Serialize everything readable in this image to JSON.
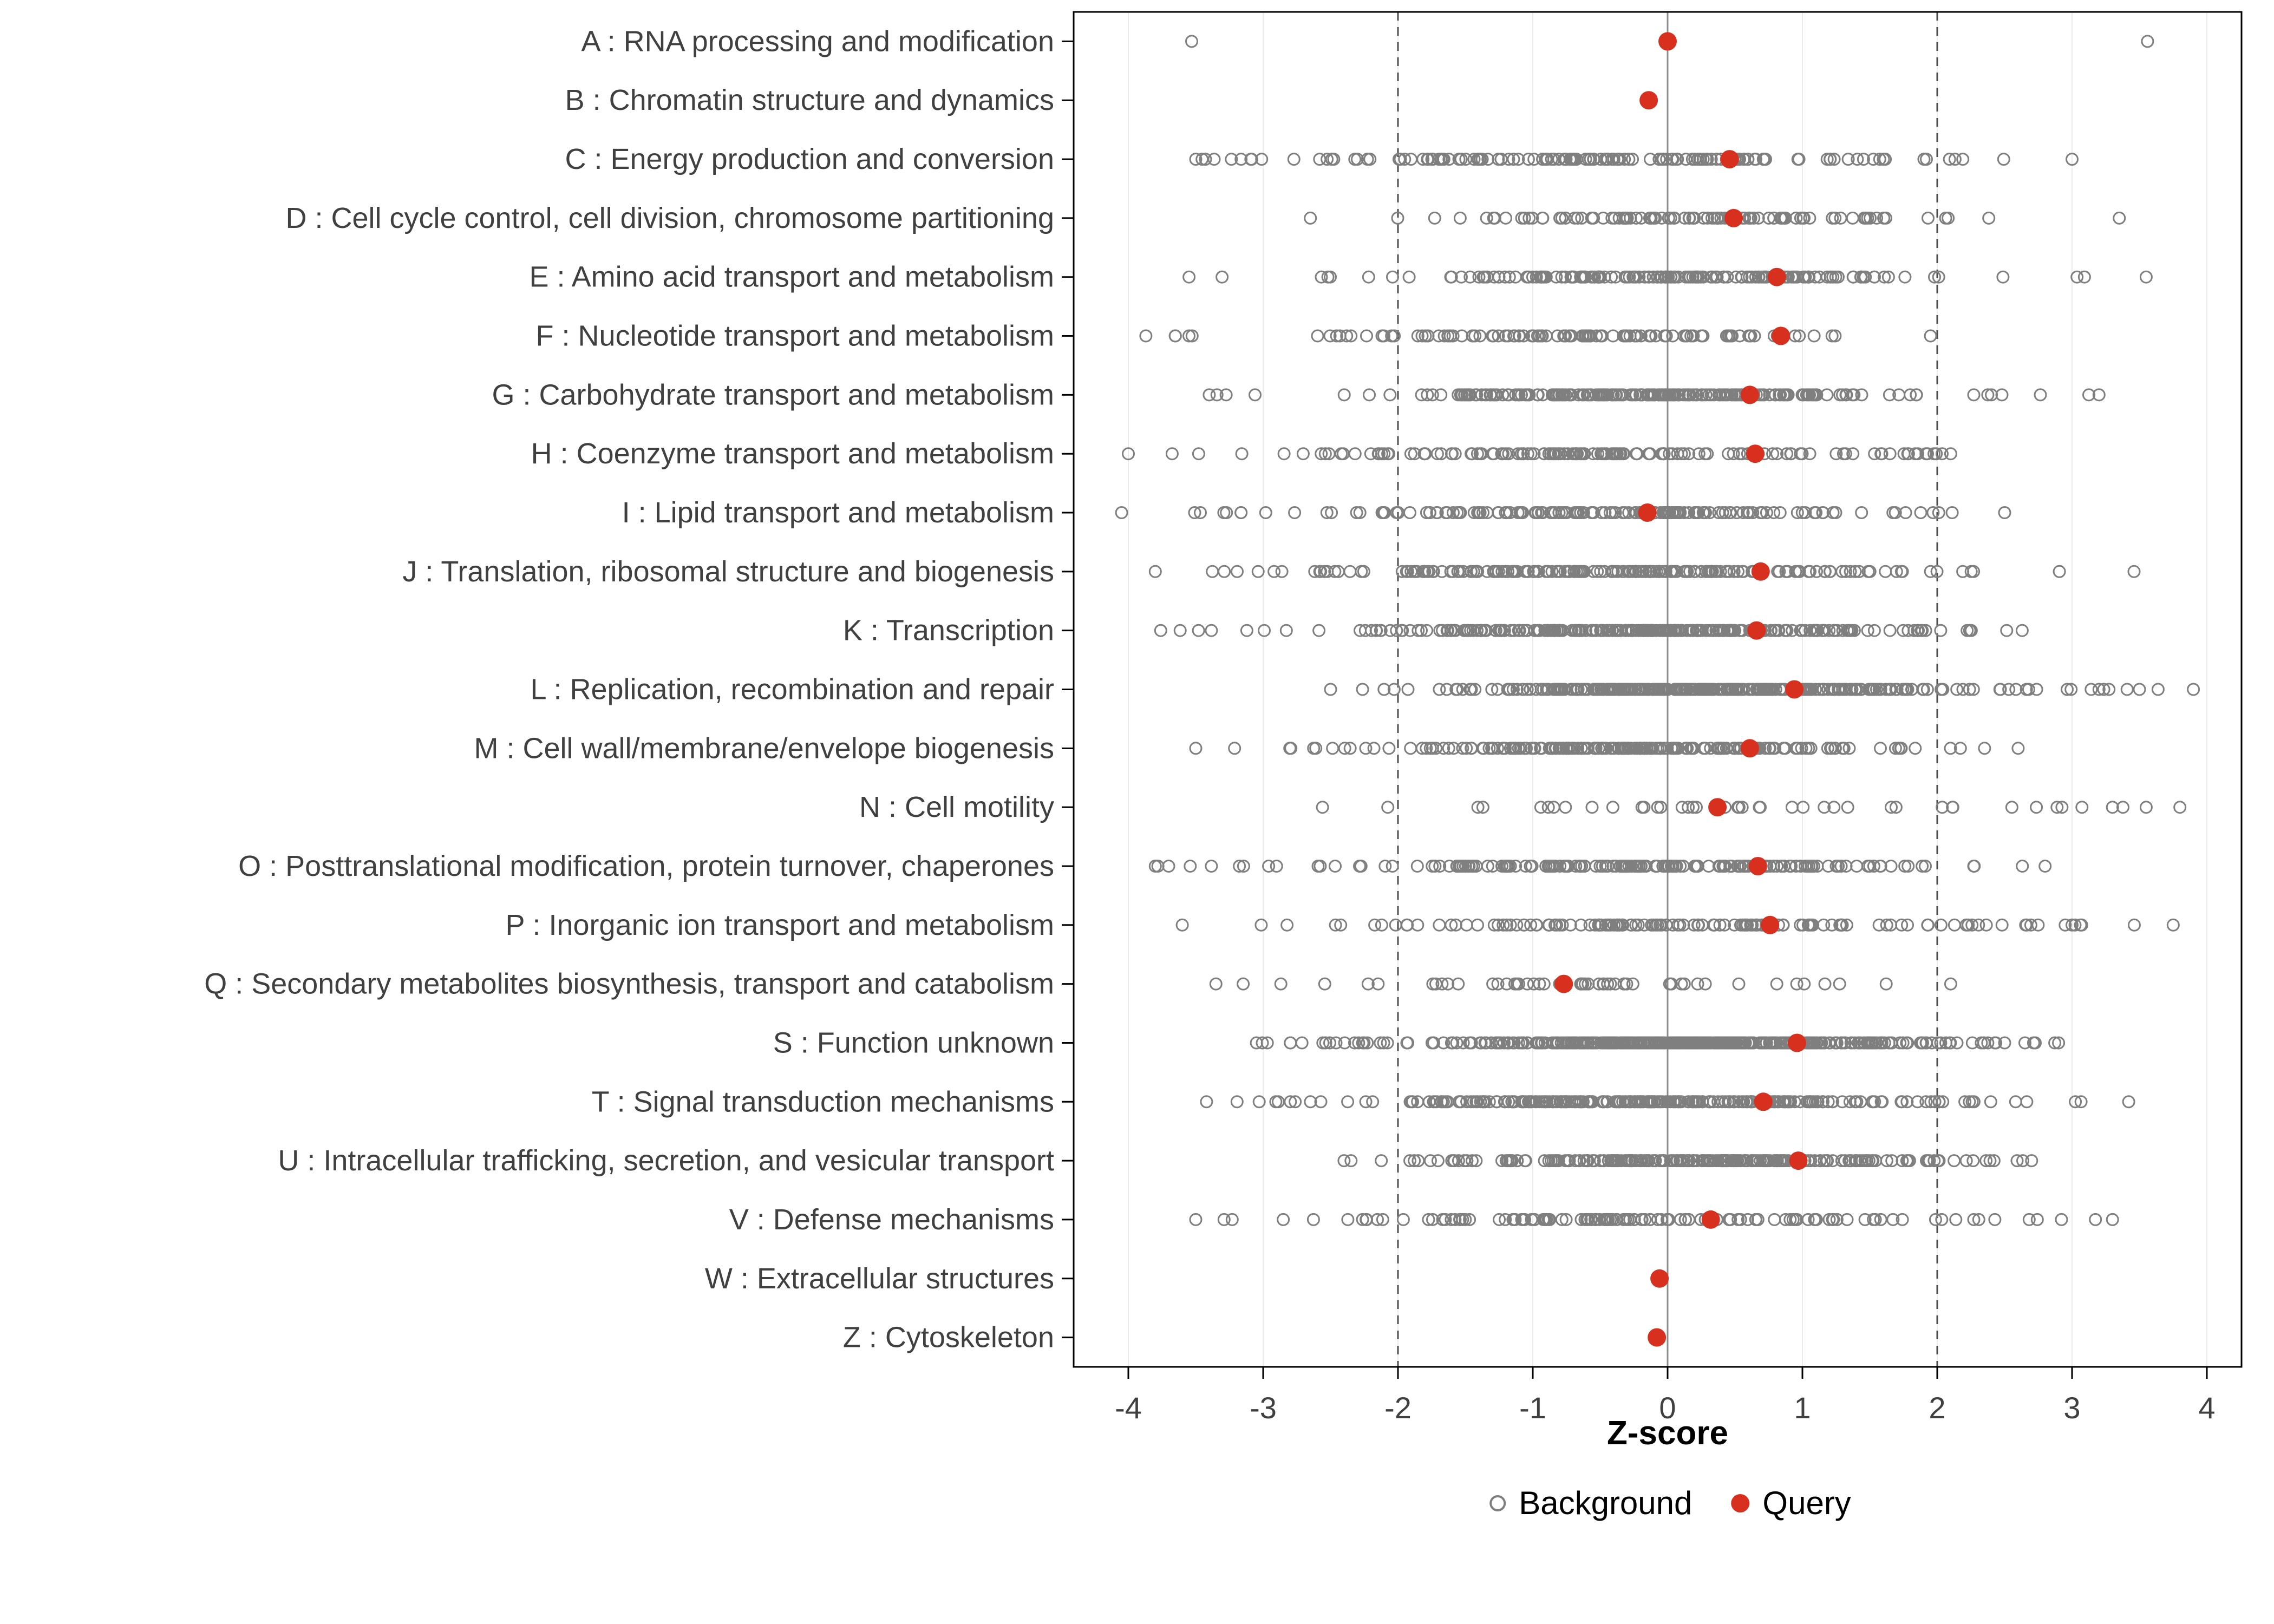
{
  "chart_data": {
    "type": "scatter",
    "title": "",
    "xlabel": "Z-score",
    "xlim": [
      -4.45,
      4.3
    ],
    "xticks": [
      -4,
      -3,
      -2,
      -1,
      0,
      1,
      2,
      3,
      4
    ],
    "reference_lines": {
      "zero": 0,
      "dashed": [
        -2,
        2
      ]
    },
    "legend": [
      {
        "label": "Background",
        "style": "open-circle"
      },
      {
        "label": "Query",
        "style": "filled-circle"
      }
    ],
    "colors": {
      "query": "#d7301f",
      "background": "#7f7f7f",
      "dashed_line": "#4d4d4d",
      "zero_line": "#8c8c8c",
      "grid": "#ebebeb",
      "axis_text": "#404040",
      "panel_border": "#000000"
    },
    "categories": [
      {
        "label": "A : RNA processing and modification",
        "query": 0.0,
        "bg": {
          "n": 0,
          "extra": [
            -3.53,
            3.56
          ]
        }
      },
      {
        "label": "B : Chromatin structure and dynamics",
        "query": -0.14,
        "bg": {
          "n": 0
        }
      },
      {
        "label": "C : Energy production and conversion",
        "query": 0.46,
        "bg": {
          "n": 150,
          "mean": -0.3,
          "sd": 1.0,
          "min": -3.5,
          "max": 3.0
        }
      },
      {
        "label": "D : Cell cycle control, cell division, chromosome partitioning",
        "query": 0.49,
        "bg": {
          "n": 100,
          "mean": 0.2,
          "sd": 1.0,
          "min": -2.65,
          "max": 3.35
        }
      },
      {
        "label": "E : Amino acid transport and metabolism",
        "query": 0.81,
        "bg": {
          "n": 160,
          "mean": -0.2,
          "sd": 1.1,
          "min": -3.55,
          "max": 3.55
        }
      },
      {
        "label": "F : Nucleotide transport and metabolism",
        "query": 0.84,
        "bg": {
          "n": 110,
          "mean": -0.6,
          "sd": 1.1,
          "min": -3.87,
          "max": 1.95
        }
      },
      {
        "label": "G : Carbohydrate transport and metabolism",
        "query": 0.61,
        "bg": {
          "n": 230,
          "mean": -0.2,
          "sd": 1.0,
          "min": -3.4,
          "max": 3.2
        }
      },
      {
        "label": "H : Coenzyme transport and metabolism",
        "query": 0.65,
        "bg": {
          "n": 140,
          "mean": -0.5,
          "sd": 1.1,
          "min": -4.0,
          "max": 2.1
        }
      },
      {
        "label": "I : Lipid transport and metabolism",
        "query": -0.15,
        "bg": {
          "n": 160,
          "mean": -0.4,
          "sd": 1.1,
          "min": -4.05,
          "max": 2.5
        }
      },
      {
        "label": "J : Translation, ribosomal structure and biogenesis",
        "query": 0.69,
        "bg": {
          "n": 190,
          "mean": -0.4,
          "sd": 1.2,
          "min": -3.8,
          "max": 3.46
        }
      },
      {
        "label": "K : Transcription",
        "query": 0.66,
        "bg": {
          "n": 280,
          "mean": -0.2,
          "sd": 1.0,
          "min": -3.76,
          "max": 2.63
        }
      },
      {
        "label": "L : Replication, recombination and repair",
        "query": 0.94,
        "bg": {
          "n": 320,
          "mean": 0.35,
          "sd": 0.85,
          "min": -2.5,
          "max": 3.9,
          "extra": [
            3.2,
            3.5
          ]
        }
      },
      {
        "label": "M : Cell wall/membrane/envelope biogenesis",
        "query": 0.61,
        "bg": {
          "n": 210,
          "mean": -0.3,
          "sd": 1.0,
          "min": -3.5,
          "max": 2.6
        }
      },
      {
        "label": "N : Cell motility",
        "query": 0.37,
        "bg": {
          "n": 40,
          "mean": 0.2,
          "sd": 1.2,
          "min": -2.56,
          "max": 3.8,
          "extra": [
            3.3,
            3.55
          ]
        }
      },
      {
        "label": "O : Posttranslational modification, protein turnover, chaperones",
        "query": 0.67,
        "bg": {
          "n": 180,
          "mean": -0.4,
          "sd": 1.1,
          "min": -3.8,
          "max": 2.8
        }
      },
      {
        "label": "P : Inorganic ion transport and metabolism",
        "query": 0.76,
        "bg": {
          "n": 140,
          "mean": 0.1,
          "sd": 1.2,
          "min": -3.6,
          "max": 3.75
        }
      },
      {
        "label": "Q : Secondary metabolites biosynthesis, transport and catabolism",
        "query": -0.77,
        "bg": {
          "n": 50,
          "mean": -0.6,
          "sd": 1.1,
          "min": -3.35,
          "max": 2.1
        }
      },
      {
        "label": "S : Function unknown",
        "query": 0.96,
        "bg": {
          "n": 420,
          "mean": 0.2,
          "sd": 0.95,
          "min": -3.05,
          "max": 2.9
        }
      },
      {
        "label": "T : Signal transduction mechanisms",
        "query": 0.71,
        "bg": {
          "n": 280,
          "mean": -0.1,
          "sd": 1.1,
          "min": -3.42,
          "max": 3.42
        }
      },
      {
        "label": "U : Intracellular trafficking, secretion, and vesicular transport",
        "query": 0.97,
        "bg": {
          "n": 230,
          "mean": 0.3,
          "sd": 0.85,
          "min": -2.4,
          "max": 2.7
        }
      },
      {
        "label": "V : Defense mechanisms",
        "query": 0.32,
        "bg": {
          "n": 130,
          "mean": -0.2,
          "sd": 1.2,
          "min": -3.5,
          "max": 3.3
        }
      },
      {
        "label": "W : Extracellular structures",
        "query": -0.06,
        "bg": {
          "n": 0
        }
      },
      {
        "label": "Z : Cytoskeleton",
        "query": -0.08,
        "bg": {
          "n": 0
        }
      }
    ]
  }
}
